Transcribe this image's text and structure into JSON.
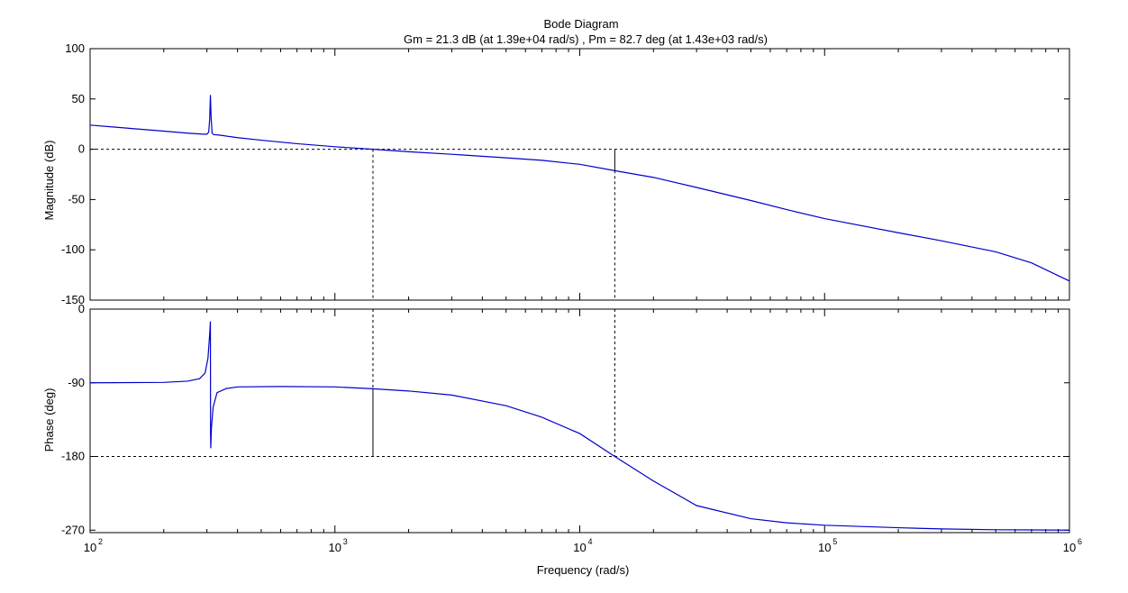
{
  "chart_data": {
    "type": "line",
    "title": "Bode Diagram",
    "subtitle": "Gm = 21.3 dB (at 1.39e+04 rad/s) ,  Pm = 82.7 deg (at 1.43e+03 rad/s)",
    "xlabel": "Frequency  (rad/s)",
    "x_scale": "log",
    "xlim": [
      100,
      1000000
    ],
    "x_tick_labels": [
      {
        "base": "10",
        "exp": "2"
      },
      {
        "base": "10",
        "exp": "3"
      },
      {
        "base": "10",
        "exp": "4"
      },
      {
        "base": "10",
        "exp": "5"
      },
      {
        "base": "10",
        "exp": "6"
      }
    ],
    "gain_margin_frequency": 13900,
    "phase_margin_frequency": 1430,
    "magnitude": {
      "ylabel": "Magnitude (dB)",
      "ylim": [
        -150,
        100
      ],
      "yticks": [
        "100",
        "50",
        "0",
        "-50",
        "-100",
        "-150"
      ],
      "reference_line": 0,
      "gain_margin_value_db": -21.3,
      "x": [
        100,
        150,
        200,
        250,
        290,
        300,
        305,
        308,
        310,
        312,
        315,
        320,
        330,
        350,
        400,
        500,
        700,
        1000,
        1430,
        2000,
        3000,
        5000,
        7000,
        10000,
        13900,
        20000,
        30000,
        50000,
        70000,
        100000,
        200000,
        300000,
        500000,
        700000,
        1000000
      ],
      "y": [
        24,
        20.5,
        18,
        16,
        15,
        15,
        17,
        30,
        54,
        32,
        16,
        14.5,
        14.3,
        13.5,
        11.5,
        9,
        5.5,
        2.5,
        0,
        -2.5,
        -5,
        -8.5,
        -11,
        -15,
        -21.3,
        -28,
        -38,
        -51,
        -60,
        -69,
        -83,
        -91,
        -102,
        -113,
        -131
      ]
    },
    "phase": {
      "ylabel": "Phase (deg)",
      "ylim": [
        -273,
        0
      ],
      "yticks": [
        "0",
        "-90",
        "-180",
        "-270"
      ],
      "reference_line": -180,
      "phase_margin_value_deg": -97.3,
      "x": [
        100,
        200,
        250,
        280,
        295,
        303,
        308,
        310,
        310.5,
        311,
        313,
        318,
        330,
        360,
        400,
        600,
        1000,
        1430,
        2000,
        3000,
        5000,
        7000,
        10000,
        13900,
        20000,
        30000,
        50000,
        70000,
        100000,
        200000,
        300000,
        500000,
        1000000
      ],
      "y": [
        -90,
        -89.5,
        -88,
        -85,
        -78,
        -60,
        -30,
        -15,
        -150,
        -170,
        -145,
        -120,
        -102,
        -97,
        -95,
        -94.5,
        -95,
        -97.3,
        -100,
        -105,
        -118,
        -132,
        -152,
        -180,
        -210,
        -240,
        -256,
        -261,
        -264,
        -267,
        -268.5,
        -269.5,
        -270
      ]
    }
  }
}
